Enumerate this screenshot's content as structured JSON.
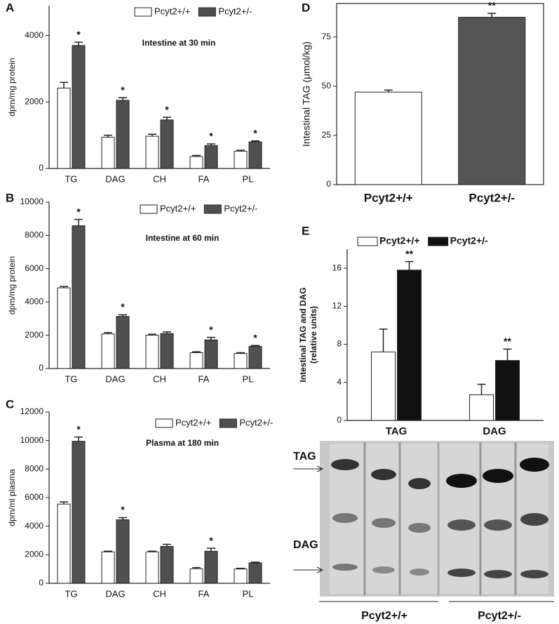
{
  "chart_data": [
    {
      "type": "bar",
      "panel": "A",
      "title": "Intestine at 30 min",
      "ylabel": "dpm/mg protein",
      "categories": [
        "TG",
        "DAG",
        "CH",
        "FA",
        "PL"
      ],
      "series": [
        {
          "name": "Pcyt2+/+",
          "color": "#ffffff",
          "values": [
            2420,
            940,
            970,
            360,
            520
          ],
          "errors": [
            170,
            60,
            60,
            30,
            30
          ],
          "significance": [
            null,
            null,
            null,
            null,
            null
          ]
        },
        {
          "name": "Pcyt2+/-",
          "color": "#505050",
          "values": [
            3700,
            2050,
            1460,
            690,
            800
          ],
          "errors": [
            100,
            80,
            80,
            50,
            30
          ],
          "significance": [
            "*",
            "*",
            "*",
            "*",
            "*"
          ]
        }
      ],
      "ylim": [
        0,
        4900
      ],
      "yticks": [
        0,
        2000,
        4000
      ]
    },
    {
      "type": "bar",
      "panel": "B",
      "title": "Intestine at 60 min",
      "ylabel": "dpm/mg protein",
      "categories": [
        "TG",
        "DAG",
        "CH",
        "FA",
        "PL"
      ],
      "series": [
        {
          "name": "Pcyt2+/+",
          "color": "#ffffff",
          "values": [
            4850,
            2080,
            2000,
            950,
            900
          ],
          "errors": [
            80,
            80,
            60,
            60,
            50
          ],
          "significance": [
            null,
            null,
            null,
            null,
            null
          ]
        },
        {
          "name": "Pcyt2+/-",
          "color": "#505050",
          "values": [
            8580,
            3130,
            2100,
            1720,
            1330
          ],
          "errors": [
            380,
            100,
            100,
            150,
            50
          ],
          "significance": [
            "*",
            "*",
            null,
            "*",
            "*"
          ]
        }
      ],
      "ylim": [
        0,
        10000
      ],
      "yticks": [
        0,
        2000,
        4000,
        6000,
        8000,
        10000
      ]
    },
    {
      "type": "bar",
      "panel": "C",
      "title": "Plasma at 180 min",
      "ylabel": "dpm/ml plasma",
      "categories": [
        "TG",
        "DAG",
        "CH",
        "FA",
        "PL"
      ],
      "series": [
        {
          "name": "Pcyt2+/+",
          "color": "#ffffff",
          "values": [
            5550,
            2200,
            2200,
            1020,
            1000
          ],
          "errors": [
            150,
            50,
            50,
            80,
            50
          ],
          "significance": [
            null,
            null,
            null,
            null,
            null
          ]
        },
        {
          "name": "Pcyt2+/-",
          "color": "#505050",
          "values": [
            9950,
            4450,
            2580,
            2250,
            1430
          ],
          "errors": [
            300,
            150,
            150,
            200,
            50
          ],
          "significance": [
            "*",
            "*",
            null,
            "*",
            null
          ]
        }
      ],
      "ylim": [
        0,
        12000
      ],
      "yticks": [
        0,
        2000,
        4000,
        6000,
        8000,
        10000,
        12000
      ]
    },
    {
      "type": "bar",
      "panel": "D",
      "ylabel": "Intestinal TAG (μmol/kg)",
      "frame": true,
      "categories": [
        "Pcyt2+/+",
        "Pcyt2+/-"
      ],
      "values": [
        47,
        85
      ],
      "errors": [
        1,
        2
      ],
      "colors": [
        "#ffffff",
        "#555555"
      ],
      "significance": [
        null,
        "**"
      ],
      "ylim": [
        0,
        92
      ],
      "yticks": [
        0,
        25,
        50,
        75
      ]
    },
    {
      "type": "bar",
      "panel": "E",
      "ylabel": [
        "Intestinal TAG and DAG",
        "(relative units)"
      ],
      "categories": [
        "TAG",
        "DAG"
      ],
      "series": [
        {
          "name": "Pcyt2+/+",
          "color": "#ffffff",
          "values": [
            7.2,
            2.7
          ],
          "errors": [
            2.4,
            1.1
          ],
          "significance": [
            null,
            null
          ]
        },
        {
          "name": "Pcyt2+/-",
          "color": "#111111",
          "values": [
            15.8,
            6.3
          ],
          "errors": [
            0.9,
            1.2
          ],
          "significance": [
            "**",
            "**"
          ]
        }
      ],
      "ylim": [
        0,
        18
      ],
      "yticks": [
        0,
        4,
        8,
        12,
        16
      ]
    }
  ],
  "blot": {
    "labels": [
      "TAG",
      "DAG"
    ],
    "groups": [
      "Pcyt2+/+",
      "Pcyt2+/-"
    ]
  }
}
